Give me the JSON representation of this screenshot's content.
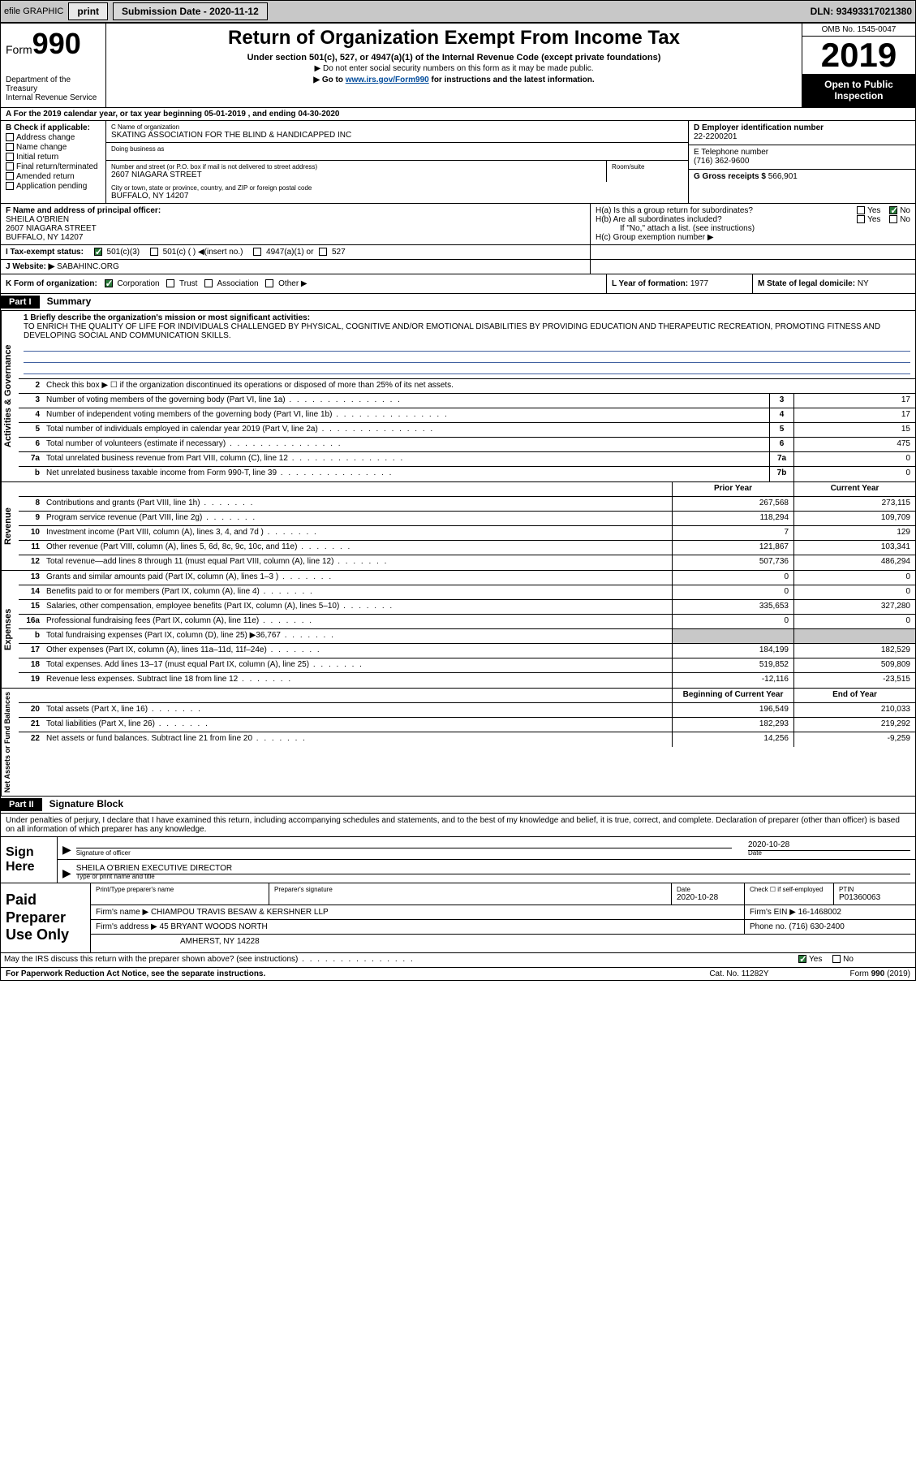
{
  "topbar": {
    "efile": "efile GRAPHIC",
    "print": "print",
    "sub_label": "Submission Date - ",
    "sub_date": "2020-11-12",
    "dln_label": "DLN: ",
    "dln": "93493317021380"
  },
  "header": {
    "form_prefix": "Form",
    "form_num": "990",
    "dept": "Department of the Treasury\nInternal Revenue Service",
    "title": "Return of Organization Exempt From Income Tax",
    "sub1": "Under section 501(c), 527, or 4947(a)(1) of the Internal Revenue Code (except private foundations)",
    "sub2": "▶ Do not enter social security numbers on this form as it may be made public.",
    "sub3_pre": "▶ Go to ",
    "sub3_link": "www.irs.gov/Form990",
    "sub3_post": " for instructions and the latest information.",
    "omb": "OMB No. 1545-0047",
    "year": "2019",
    "open": "Open to Public Inspection"
  },
  "row_a": "A For the 2019 calendar year, or tax year beginning 05-01-2019   , and ending 04-30-2020",
  "box_b": {
    "label": "B Check if applicable:",
    "items": [
      "Address change",
      "Name change",
      "Initial return",
      "Final return/terminated",
      "Amended return",
      "Application pending"
    ]
  },
  "box_c": {
    "label": "C Name of organization",
    "name": "SKATING ASSOCIATION FOR THE BLIND & HANDICAPPED INC",
    "dba_label": "Doing business as",
    "addr_label": "Number and street (or P.O. box if mail is not delivered to street address)",
    "room_label": "Room/suite",
    "addr": "2607 NIAGARA STREET",
    "city_label": "City or town, state or province, country, and ZIP or foreign postal code",
    "city": "BUFFALO, NY  14207"
  },
  "box_d": {
    "label": "D Employer identification number",
    "val": "22-2200201"
  },
  "box_e": {
    "label": "E Telephone number",
    "val": "(716) 362-9600"
  },
  "box_g": {
    "label": "G Gross receipts $ ",
    "val": "566,901"
  },
  "box_f": {
    "label": "F  Name and address of principal officer:",
    "name": "SHEILA O'BRIEN",
    "addr1": "2607 NIAGARA STREET",
    "addr2": "BUFFALO, NY  14207"
  },
  "box_h": {
    "ha": "H(a)  Is this a group return for subordinates?",
    "hb": "H(b)  Are all subordinates included?",
    "hb_note": "If \"No,\" attach a list. (see instructions)",
    "hc": "H(c)  Group exemption number ▶"
  },
  "row_i": {
    "label": "I  Tax-exempt status:",
    "opt1": "501(c)(3)",
    "opt2": "501(c) (  ) ◀(insert no.)",
    "opt3": "4947(a)(1) or",
    "opt4": "527"
  },
  "row_j": {
    "label": "J  Website: ▶ ",
    "val": "SABAHINC.ORG"
  },
  "row_k": {
    "label": "K Form of organization:",
    "opts": [
      "Corporation",
      "Trust",
      "Association",
      "Other ▶"
    ],
    "l_label": "L Year of formation: ",
    "l_val": "1977",
    "m_label": "M State of legal domicile: ",
    "m_val": "NY"
  },
  "part1": {
    "hdr": "Part I",
    "title": "Summary",
    "line1_label": "1  Briefly describe the organization's mission or most significant activities:",
    "mission": "TO ENRICH THE QUALITY OF LIFE FOR INDIVIDUALS CHALLENGED BY PHYSICAL, COGNITIVE AND/OR EMOTIONAL DISABILITIES BY PROVIDING EDUCATION AND THERAPEUTIC RECREATION, PROMOTING FITNESS AND DEVELOPING SOCIAL AND COMMUNICATION SKILLS.",
    "line2": "Check this box ▶ ☐ if the organization discontinued its operations or disposed of more than 25% of its net assets.",
    "lines_gov": [
      {
        "n": "3",
        "t": "Number of voting members of the governing body (Part VI, line 1a)",
        "box": "3",
        "v": "17"
      },
      {
        "n": "4",
        "t": "Number of independent voting members of the governing body (Part VI, line 1b)",
        "box": "4",
        "v": "17"
      },
      {
        "n": "5",
        "t": "Total number of individuals employed in calendar year 2019 (Part V, line 2a)",
        "box": "5",
        "v": "15"
      },
      {
        "n": "6",
        "t": "Total number of volunteers (estimate if necessary)",
        "box": "6",
        "v": "475"
      },
      {
        "n": "7a",
        "t": "Total unrelated business revenue from Part VIII, column (C), line 12",
        "box": "7a",
        "v": "0"
      },
      {
        "n": "b",
        "t": "Net unrelated business taxable income from Form 990-T, line 39",
        "box": "7b",
        "v": "0"
      }
    ],
    "col_prior": "Prior Year",
    "col_current": "Current Year",
    "lines_rev": [
      {
        "n": "8",
        "t": "Contributions and grants (Part VIII, line 1h)",
        "p": "267,568",
        "c": "273,115"
      },
      {
        "n": "9",
        "t": "Program service revenue (Part VIII, line 2g)",
        "p": "118,294",
        "c": "109,709"
      },
      {
        "n": "10",
        "t": "Investment income (Part VIII, column (A), lines 3, 4, and 7d )",
        "p": "7",
        "c": "129"
      },
      {
        "n": "11",
        "t": "Other revenue (Part VIII, column (A), lines 5, 6d, 8c, 9c, 10c, and 11e)",
        "p": "121,867",
        "c": "103,341"
      },
      {
        "n": "12",
        "t": "Total revenue—add lines 8 through 11 (must equal Part VIII, column (A), line 12)",
        "p": "507,736",
        "c": "486,294"
      }
    ],
    "lines_exp": [
      {
        "n": "13",
        "t": "Grants and similar amounts paid (Part IX, column (A), lines 1–3 )",
        "p": "0",
        "c": "0"
      },
      {
        "n": "14",
        "t": "Benefits paid to or for members (Part IX, column (A), line 4)",
        "p": "0",
        "c": "0"
      },
      {
        "n": "15",
        "t": "Salaries, other compensation, employee benefits (Part IX, column (A), lines 5–10)",
        "p": "335,653",
        "c": "327,280"
      },
      {
        "n": "16a",
        "t": "Professional fundraising fees (Part IX, column (A), line 11e)",
        "p": "0",
        "c": "0"
      },
      {
        "n": "b",
        "t": "Total fundraising expenses (Part IX, column (D), line 25) ▶36,767",
        "p": "",
        "c": "",
        "shaded": true
      },
      {
        "n": "17",
        "t": "Other expenses (Part IX, column (A), lines 11a–11d, 11f–24e)",
        "p": "184,199",
        "c": "182,529"
      },
      {
        "n": "18",
        "t": "Total expenses. Add lines 13–17 (must equal Part IX, column (A), line 25)",
        "p": "519,852",
        "c": "509,809"
      },
      {
        "n": "19",
        "t": "Revenue less expenses. Subtract line 18 from line 12",
        "p": "-12,116",
        "c": "-23,515"
      }
    ],
    "col_begin": "Beginning of Current Year",
    "col_end": "End of Year",
    "lines_net": [
      {
        "n": "20",
        "t": "Total assets (Part X, line 16)",
        "p": "196,549",
        "c": "210,033"
      },
      {
        "n": "21",
        "t": "Total liabilities (Part X, line 26)",
        "p": "182,293",
        "c": "219,292"
      },
      {
        "n": "22",
        "t": "Net assets or fund balances. Subtract line 21 from line 20",
        "p": "14,256",
        "c": "-9,259"
      }
    ],
    "vtab_gov": "Activities & Governance",
    "vtab_rev": "Revenue",
    "vtab_exp": "Expenses",
    "vtab_net": "Net Assets or Fund Balances"
  },
  "part2": {
    "hdr": "Part II",
    "title": "Signature Block",
    "declare": "Under penalties of perjury, I declare that I have examined this return, including accompanying schedules and statements, and to the best of my knowledge and belief, it is true, correct, and complete. Declaration of preparer (other than officer) is based on all information of which preparer has any knowledge.",
    "sign_here": "Sign Here",
    "sig_officer_label": "Signature of officer",
    "sig_date_label": "Date",
    "sig_date": "2020-10-28",
    "sig_name": "SHEILA O'BRIEN  EXECUTIVE DIRECTOR",
    "sig_name_label": "Type or print name and title",
    "paid": "Paid Preparer Use Only",
    "prep_name_label": "Print/Type preparer's name",
    "prep_sig_label": "Preparer's signature",
    "prep_date_label": "Date",
    "prep_date": "2020-10-28",
    "prep_check": "Check ☐ if self-employed",
    "ptin_label": "PTIN",
    "ptin": "P01360063",
    "firm_name_label": "Firm's name    ▶ ",
    "firm_name": "CHIAMPOU TRAVIS BESAW & KERSHNER LLP",
    "firm_ein_label": "Firm's EIN ▶ ",
    "firm_ein": "16-1468002",
    "firm_addr_label": "Firm's address ▶ ",
    "firm_addr1": "45 BRYANT WOODS NORTH",
    "firm_addr2": "AMHERST, NY  14228",
    "firm_phone_label": "Phone no. ",
    "firm_phone": "(716) 630-2400",
    "discuss": "May the IRS discuss this return with the preparer shown above? (see instructions)"
  },
  "footer": {
    "left": "For Paperwork Reduction Act Notice, see the separate instructions.",
    "mid": "Cat. No. 11282Y",
    "right": "Form 990 (2019)"
  }
}
